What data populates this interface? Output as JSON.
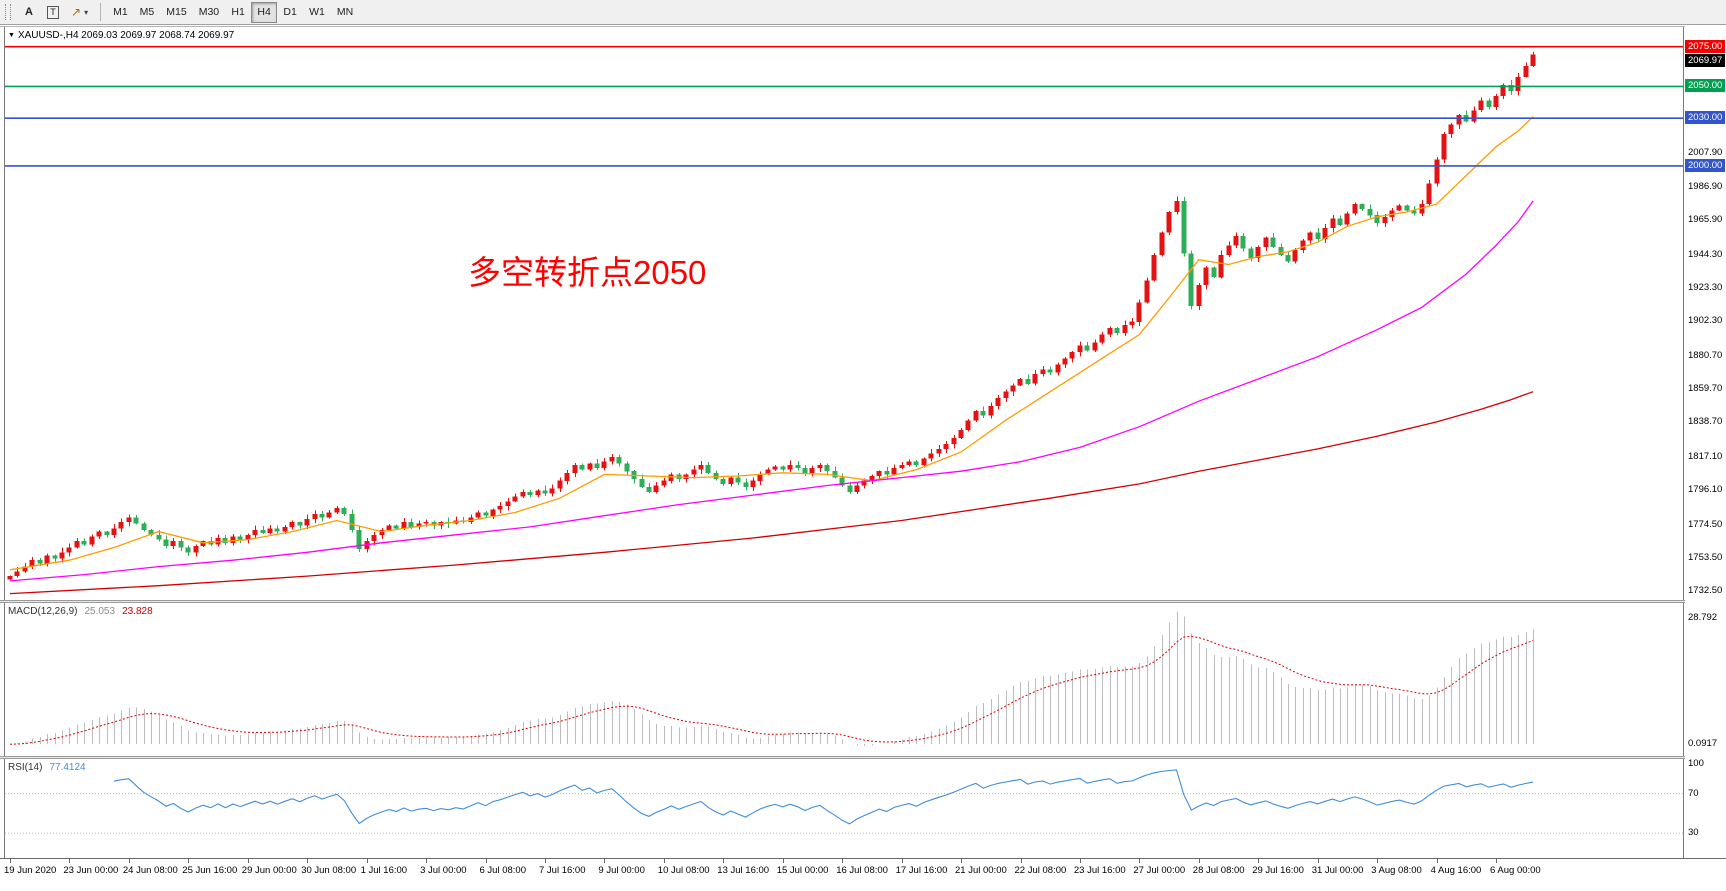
{
  "toolbar": {
    "text_tool": "A",
    "label_tool": "T",
    "arrow_caret": "▾",
    "arrow_glyph": "↗",
    "timeframes": [
      "M1",
      "M5",
      "M15",
      "M30",
      "H1",
      "H4",
      "D1",
      "W1",
      "MN"
    ],
    "active_timeframe": "H4"
  },
  "chart_header": {
    "collapse_icon": "▼",
    "text": "XAUUSD-,H4  2069.03 2069.97 2068.74 2069.97"
  },
  "annotation": {
    "text": "多空转折点2050",
    "color": "#FF0000"
  },
  "price_axis": {
    "badges": [
      {
        "label": "2075.00",
        "value": 2075.0,
        "color": "#F40000"
      },
      {
        "label": "2069.97",
        "value": 2069.97,
        "color": "#000000"
      },
      {
        "label": "2050.00",
        "value": 2050.0,
        "color": "#00A050"
      },
      {
        "label": "2030.00",
        "value": 2030.0,
        "color": "#3355CC"
      },
      {
        "label": "2000.00",
        "value": 2000.0,
        "color": "#3355CC"
      }
    ],
    "ticks": [
      "2007.90",
      "1986.90",
      "1965.90",
      "1944.30",
      "1923.30",
      "1902.30",
      "1880.70",
      "1859.70",
      "1838.70",
      "1817.10",
      "1796.10",
      "1774.50",
      "1753.50",
      "1732.50"
    ]
  },
  "macd": {
    "name": "MACD(12,26,9)",
    "main_value": "25.053",
    "signal_value": "23.828",
    "histogram_color": "#BDBDBD",
    "signal_color": "#DD0000",
    "axis_labels": [
      {
        "label": "28.792",
        "value": 28.792
      },
      {
        "label": "0.0917",
        "value": 0.0917
      }
    ]
  },
  "rsi": {
    "name": "RSI(14)",
    "value": "77.4124",
    "line_color": "#3F8EDB",
    "levels": [
      70,
      30
    ],
    "axis_labels": [
      "100",
      "70",
      "30"
    ]
  },
  "chart_data": {
    "type": "candlestick",
    "symbol": "XAUUSD-",
    "period": "H4",
    "ohlc": {
      "open": 2069.03,
      "high": 2069.97,
      "low": 2068.74,
      "close": 2069.97
    },
    "bull_color": "#E41212",
    "bear_color": "#2FAE5A",
    "visible_price_range": [
      1727,
      2088
    ],
    "bars_per_label": 8,
    "horizontal_lines": [
      {
        "price": 2075,
        "color": "#F40000"
      },
      {
        "price": 2050,
        "color": "#00A050"
      },
      {
        "price": 2030,
        "color": "#3355CC"
      },
      {
        "price": 2000,
        "color": "#3355CC"
      }
    ],
    "closes": [
      1742,
      1745,
      1748,
      1752,
      1750,
      1755,
      1753,
      1757,
      1760,
      1764,
      1762,
      1767,
      1770,
      1768,
      1772,
      1776,
      1779,
      1775,
      1771,
      1768,
      1765,
      1761,
      1764,
      1760,
      1757,
      1761,
      1764,
      1762,
      1766,
      1763,
      1767,
      1765,
      1768,
      1771,
      1769,
      1772,
      1770,
      1773,
      1776,
      1774,
      1778,
      1781,
      1779,
      1782,
      1785,
      1781,
      1771,
      1759,
      1764,
      1768,
      1771,
      1774,
      1772,
      1776,
      1773,
      1775,
      1776,
      1774,
      1776,
      1775,
      1777,
      1776,
      1779,
      1782,
      1780,
      1784,
      1786,
      1789,
      1792,
      1795,
      1793,
      1796,
      1794,
      1797,
      1802,
      1807,
      1812,
      1809,
      1813,
      1810,
      1814,
      1817,
      1813,
      1808,
      1803,
      1798,
      1795,
      1799,
      1802,
      1806,
      1803,
      1806,
      1809,
      1812,
      1807,
      1803,
      1800,
      1804,
      1801,
      1798,
      1802,
      1806,
      1809,
      1811,
      1809,
      1812,
      1810,
      1807,
      1810,
      1812,
      1808,
      1804,
      1799,
      1795,
      1799,
      1802,
      1805,
      1808,
      1806,
      1810,
      1812,
      1814,
      1812,
      1816,
      1819,
      1822,
      1825,
      1829,
      1834,
      1840,
      1846,
      1843,
      1849,
      1854,
      1858,
      1862,
      1866,
      1863,
      1869,
      1872,
      1870,
      1875,
      1879,
      1883,
      1887,
      1884,
      1889,
      1894,
      1898,
      1895,
      1900,
      1902,
      1914,
      1928,
      1944,
      1958,
      1971,
      1978,
      1945,
      1912,
      1925,
      1936,
      1930,
      1944,
      1950,
      1956,
      1948,
      1942,
      1949,
      1955,
      1949,
      1944,
      1940,
      1947,
      1953,
      1958,
      1954,
      1961,
      1967,
      1963,
      1970,
      1976,
      1973,
      1969,
      1964,
      1968,
      1972,
      1975,
      1972,
      1970,
      1976,
      1989,
      2004,
      2020,
      2026,
      2032,
      2028,
      2035,
      2041,
      2037,
      2044,
      2051,
      2047,
      2056,
      2063,
      2069.97
    ],
    "moving_averages": [
      {
        "name": "fast",
        "color": "#FF9C00",
        "points": [
          [
            0,
            1746
          ],
          [
            8,
            1752
          ],
          [
            14,
            1760
          ],
          [
            20,
            1770
          ],
          [
            26,
            1763
          ],
          [
            32,
            1765
          ],
          [
            38,
            1770
          ],
          [
            44,
            1777
          ],
          [
            50,
            1770
          ],
          [
            56,
            1774
          ],
          [
            62,
            1777
          ],
          [
            68,
            1782
          ],
          [
            74,
            1791
          ],
          [
            80,
            1806
          ],
          [
            86,
            1805
          ],
          [
            92,
            1804
          ],
          [
            98,
            1805
          ],
          [
            104,
            1807
          ],
          [
            110,
            1806
          ],
          [
            116,
            1802
          ],
          [
            122,
            1809
          ],
          [
            128,
            1820
          ],
          [
            134,
            1840
          ],
          [
            140,
            1858
          ],
          [
            146,
            1876
          ],
          [
            152,
            1894
          ],
          [
            156,
            1917
          ],
          [
            160,
            1941
          ],
          [
            164,
            1938
          ],
          [
            168,
            1943
          ],
          [
            172,
            1946
          ],
          [
            176,
            1952
          ],
          [
            180,
            1962
          ],
          [
            184,
            1968
          ],
          [
            188,
            1971
          ],
          [
            192,
            1976
          ],
          [
            196,
            1994
          ],
          [
            200,
            2012
          ],
          [
            203,
            2022
          ],
          [
            205,
            2031
          ]
        ]
      },
      {
        "name": "medium",
        "color": "#FF00FF",
        "points": [
          [
            0,
            1739
          ],
          [
            10,
            1743
          ],
          [
            20,
            1748
          ],
          [
            30,
            1752
          ],
          [
            40,
            1757
          ],
          [
            50,
            1763
          ],
          [
            60,
            1768
          ],
          [
            70,
            1773
          ],
          [
            80,
            1780
          ],
          [
            90,
            1787
          ],
          [
            100,
            1793
          ],
          [
            110,
            1799
          ],
          [
            120,
            1804
          ],
          [
            128,
            1808
          ],
          [
            136,
            1814
          ],
          [
            144,
            1823
          ],
          [
            152,
            1836
          ],
          [
            160,
            1852
          ],
          [
            168,
            1866
          ],
          [
            176,
            1880
          ],
          [
            184,
            1897
          ],
          [
            190,
            1911
          ],
          [
            196,
            1932
          ],
          [
            200,
            1950
          ],
          [
            203,
            1965
          ],
          [
            205,
            1978
          ]
        ]
      },
      {
        "name": "slow",
        "color": "#D40000",
        "points": [
          [
            0,
            1731
          ],
          [
            20,
            1736
          ],
          [
            40,
            1742
          ],
          [
            60,
            1749
          ],
          [
            80,
            1757
          ],
          [
            100,
            1766
          ],
          [
            120,
            1777
          ],
          [
            140,
            1791
          ],
          [
            152,
            1800
          ],
          [
            160,
            1808
          ],
          [
            168,
            1815
          ],
          [
            176,
            1822
          ],
          [
            184,
            1830
          ],
          [
            192,
            1839
          ],
          [
            198,
            1847
          ],
          [
            202,
            1853
          ],
          [
            205,
            1858
          ]
        ]
      }
    ],
    "time_labels": [
      "19 Jun 2020",
      "23 Jun 00:00",
      "24 Jun 08:00",
      "25 Jun 16:00",
      "29 Jun 00:00",
      "30 Jun 08:00",
      "1 Jul 16:00",
      "3 Jul 00:00",
      "6 Jul 08:00",
      "7 Jul 16:00",
      "9 Jul 00:00",
      "10 Jul 08:00",
      "13 Jul 16:00",
      "15 Jul 00:00",
      "16 Jul 08:00",
      "17 Jul 16:00",
      "21 Jul 00:00",
      "22 Jul 08:00",
      "23 Jul 16:00",
      "27 Jul 00:00",
      "28 Jul 08:00",
      "29 Jul 16:00",
      "31 Jul 00:00",
      "3 Aug 08:00",
      "4 Aug 16:00",
      "6 Aug 00:00"
    ]
  }
}
